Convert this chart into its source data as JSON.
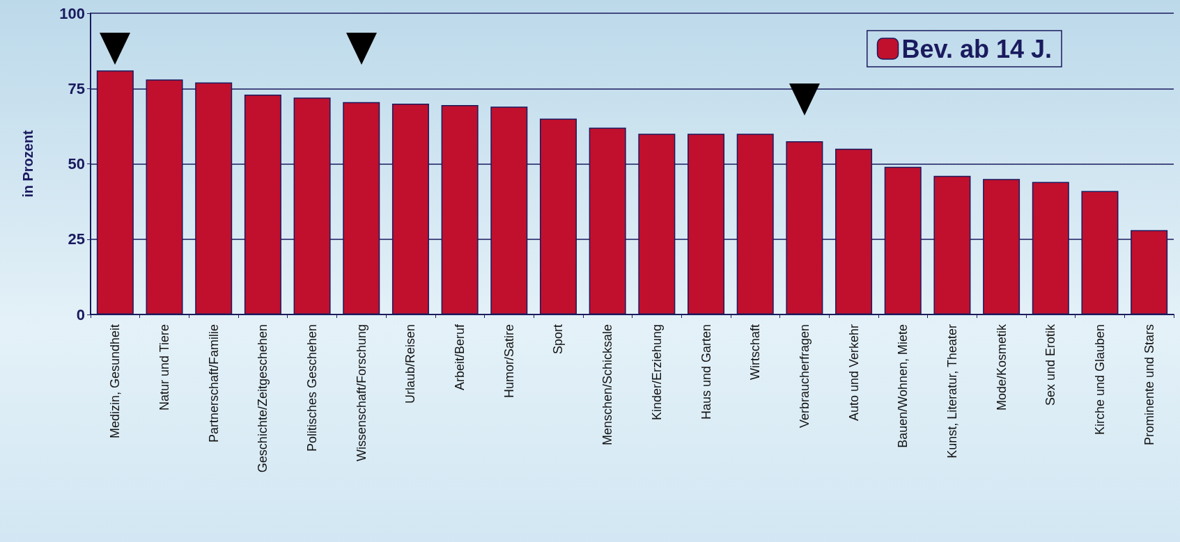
{
  "chart_data": {
    "type": "bar",
    "ylabel": "in Prozent",
    "categories": [
      "Medizin, Gesundheit",
      "Natur und Tiere",
      "Partnerschaft/Familie",
      "Geschichte/Zeitgeschehen",
      "Politisches Geschehen",
      "Wissenschaft/Forschung",
      "Urlaub/Reisen",
      "Arbeit/Beruf",
      "Humor/Satire",
      "Sport",
      "Menschen/Schicksale",
      "Kinder/Erziehung",
      "Haus und Garten",
      "Wirtschaft",
      "Verbraucherfragen",
      "Auto und Verkehr",
      "Bauen/Wohnen, Miete",
      "Kunst, Literatur, Theater",
      "Mode/Kosmetik",
      "Sex und Erotik",
      "Kirche und Glauben",
      "Prominente und Stars"
    ],
    "series": [
      {
        "name": "Bev. ab 14 J.",
        "color": "#c0102e",
        "values": [
          81,
          78,
          77,
          73,
          72,
          70.5,
          70,
          69.5,
          69,
          65,
          62,
          60,
          60,
          60,
          57.5,
          55,
          49,
          46,
          45,
          44,
          41,
          28
        ]
      }
    ],
    "ylim": [
      0,
      100
    ],
    "yticks": [
      0,
      25,
      50,
      75,
      100
    ],
    "grid": "y",
    "legend": "top right"
  }
}
